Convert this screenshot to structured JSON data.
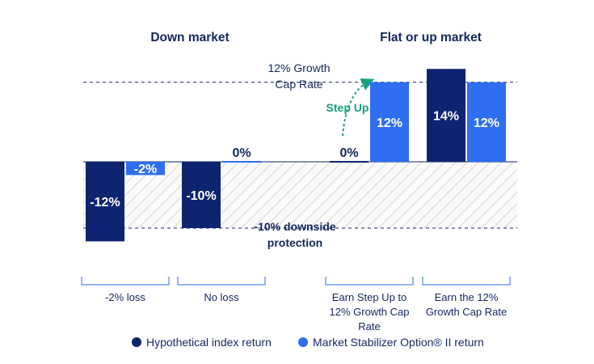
{
  "chart_data": {
    "type": "bar",
    "groups": [
      {
        "title": "Down market",
        "categories": [
          "-2% loss",
          "No loss"
        ]
      },
      {
        "title": "Flat or up market",
        "categories": [
          "Earn Step Up to 12% Growth Cap Rate",
          "Earn the 12% Growth Cap Rate"
        ]
      }
    ],
    "categories": [
      "-2% loss",
      "No loss",
      "Earn Step Up to 12% Growth Cap Rate",
      "Earn the 12% Growth Cap Rate"
    ],
    "category_lines": [
      [
        "-2% loss"
      ],
      [
        "No loss"
      ],
      [
        "Earn Step Up to",
        "12% Growth Cap",
        "Rate"
      ],
      [
        "Earn the 12%",
        "Growth Cap Rate"
      ]
    ],
    "series": [
      {
        "name": "Hypothetical index return",
        "values": [
          -12,
          -10,
          0,
          14
        ],
        "labels": [
          "-12%",
          "-10%",
          "0%",
          "14%"
        ],
        "color": "#0d2470"
      },
      {
        "name": "Market Stabilizer Option® II return",
        "values": [
          -2,
          0,
          12,
          12
        ],
        "labels": [
          "-2%",
          "0%",
          "12%",
          "12%"
        ],
        "color": "#2e6ef0"
      }
    ],
    "reference_lines": [
      {
        "value": 12,
        "label_lines": [
          "12% Growth",
          "Cap Rate"
        ]
      },
      {
        "value": -10,
        "label_lines": [
          "-10% downside",
          "protection"
        ]
      }
    ],
    "annotation": "Step Up",
    "ylim": [
      -13,
      14.5
    ],
    "grid": false,
    "legend_position": "bottom",
    "xlabel": "",
    "ylabel": ""
  },
  "colors": {
    "navy": "#0d2470",
    "blue": "#2e6ef0",
    "green": "#16a07e",
    "text": "#14275e",
    "hatch": "#d6d6d6"
  }
}
